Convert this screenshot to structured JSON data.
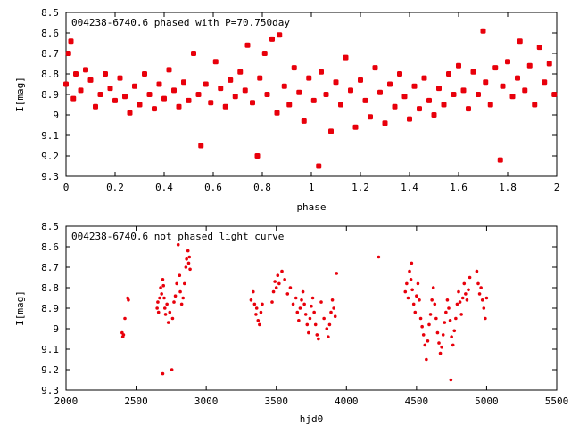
{
  "colors": {
    "points": "#e8000b",
    "axes": "#000000",
    "background": "#ffffff"
  },
  "chart_data": [
    {
      "type": "scatter",
      "title": "004238-6740.6 phased with P=70.750day",
      "xlabel": "phase",
      "ylabel": "I[mag]",
      "xlim": [
        0,
        2
      ],
      "ylim": [
        8.5,
        9.3
      ],
      "y_inverted": true,
      "grid": false,
      "x_ticks": [
        {
          "value": 0,
          "label": "0"
        },
        {
          "value": 0.2,
          "label": "0.2"
        },
        {
          "value": 0.4,
          "label": "0.4"
        },
        {
          "value": 0.6,
          "label": "0.6"
        },
        {
          "value": 0.8,
          "label": "0.8"
        },
        {
          "value": 1,
          "label": "1"
        },
        {
          "value": 1.2,
          "label": "1.2"
        },
        {
          "value": 1.4,
          "label": "1.4"
        },
        {
          "value": 1.6,
          "label": "1.6"
        },
        {
          "value": 1.8,
          "label": "1.8"
        },
        {
          "value": 2,
          "label": "2"
        }
      ],
      "y_ticks": [
        {
          "value": 8.5,
          "label": "8.5"
        },
        {
          "value": 8.6,
          "label": "8.6"
        },
        {
          "value": 8.7,
          "label": "8.7"
        },
        {
          "value": 8.8,
          "label": "8.8"
        },
        {
          "value": 8.9,
          "label": "8.9"
        },
        {
          "value": 9.0,
          "label": "9"
        },
        {
          "value": 9.1,
          "label": "9.1"
        },
        {
          "value": 9.2,
          "label": "9.2"
        },
        {
          "value": 9.3,
          "label": "9.3"
        }
      ],
      "marker": "star",
      "points": [
        [
          0.0,
          8.85
        ],
        [
          0.01,
          8.7
        ],
        [
          0.02,
          8.64
        ],
        [
          0.03,
          8.92
        ],
        [
          0.04,
          8.8
        ],
        [
          0.06,
          8.88
        ],
        [
          0.08,
          8.78
        ],
        [
          0.1,
          8.83
        ],
        [
          0.12,
          8.96
        ],
        [
          0.14,
          8.9
        ],
        [
          0.16,
          8.8
        ],
        [
          0.18,
          8.87
        ],
        [
          0.2,
          8.93
        ],
        [
          0.22,
          8.82
        ],
        [
          0.24,
          8.91
        ],
        [
          0.26,
          8.99
        ],
        [
          0.28,
          8.86
        ],
        [
          0.3,
          8.95
        ],
        [
          0.32,
          8.8
        ],
        [
          0.34,
          8.9
        ],
        [
          0.36,
          8.97
        ],
        [
          0.38,
          8.85
        ],
        [
          0.4,
          8.92
        ],
        [
          0.42,
          8.78
        ],
        [
          0.44,
          8.88
        ],
        [
          0.46,
          8.96
        ],
        [
          0.48,
          8.84
        ],
        [
          0.5,
          8.93
        ],
        [
          0.52,
          8.7
        ],
        [
          0.54,
          8.9
        ],
        [
          0.55,
          9.15
        ],
        [
          0.57,
          8.85
        ],
        [
          0.59,
          8.94
        ],
        [
          0.61,
          8.74
        ],
        [
          0.63,
          8.87
        ],
        [
          0.65,
          8.96
        ],
        [
          0.67,
          8.83
        ],
        [
          0.69,
          8.91
        ],
        [
          0.71,
          8.79
        ],
        [
          0.73,
          8.88
        ],
        [
          0.74,
          8.66
        ],
        [
          0.76,
          8.94
        ],
        [
          0.78,
          9.2
        ],
        [
          0.79,
          8.82
        ],
        [
          0.81,
          8.7
        ],
        [
          0.82,
          8.9
        ],
        [
          0.84,
          8.63
        ],
        [
          0.86,
          8.99
        ],
        [
          0.87,
          8.61
        ],
        [
          0.89,
          8.86
        ],
        [
          0.91,
          8.95
        ],
        [
          0.93,
          8.77
        ],
        [
          0.95,
          8.89
        ],
        [
          0.97,
          9.03
        ],
        [
          0.99,
          8.82
        ],
        [
          1.01,
          8.93
        ],
        [
          1.03,
          9.25
        ],
        [
          1.04,
          8.79
        ],
        [
          1.06,
          8.9
        ],
        [
          1.08,
          9.08
        ],
        [
          1.1,
          8.84
        ],
        [
          1.12,
          8.95
        ],
        [
          1.14,
          8.72
        ],
        [
          1.16,
          8.88
        ],
        [
          1.18,
          9.06
        ],
        [
          1.2,
          8.83
        ],
        [
          1.22,
          8.93
        ],
        [
          1.24,
          9.01
        ],
        [
          1.26,
          8.77
        ],
        [
          1.28,
          8.89
        ],
        [
          1.3,
          9.04
        ],
        [
          1.32,
          8.85
        ],
        [
          1.34,
          8.96
        ],
        [
          1.36,
          8.8
        ],
        [
          1.38,
          8.91
        ],
        [
          1.4,
          9.02
        ],
        [
          1.42,
          8.86
        ],
        [
          1.44,
          8.97
        ],
        [
          1.46,
          8.82
        ],
        [
          1.48,
          8.93
        ],
        [
          1.5,
          9.0
        ],
        [
          1.52,
          8.87
        ],
        [
          1.54,
          8.95
        ],
        [
          1.56,
          8.8
        ],
        [
          1.58,
          8.9
        ],
        [
          1.6,
          8.76
        ],
        [
          1.62,
          8.88
        ],
        [
          1.64,
          8.97
        ],
        [
          1.66,
          8.79
        ],
        [
          1.68,
          8.9
        ],
        [
          1.7,
          8.59
        ],
        [
          1.71,
          8.84
        ],
        [
          1.73,
          8.95
        ],
        [
          1.75,
          8.77
        ],
        [
          1.77,
          9.22
        ],
        [
          1.78,
          8.86
        ],
        [
          1.8,
          8.74
        ],
        [
          1.82,
          8.91
        ],
        [
          1.84,
          8.82
        ],
        [
          1.85,
          8.64
        ],
        [
          1.87,
          8.88
        ],
        [
          1.89,
          8.76
        ],
        [
          1.91,
          8.95
        ],
        [
          1.93,
          8.67
        ],
        [
          1.95,
          8.84
        ],
        [
          1.97,
          8.75
        ],
        [
          1.99,
          8.9
        ]
      ]
    },
    {
      "type": "scatter",
      "title": "004238-6740.6 not phased light curve",
      "xlabel": "hjd0",
      "ylabel": "I[mag]",
      "xlim": [
        2000,
        5500
      ],
      "ylim": [
        8.5,
        9.3
      ],
      "y_inverted": true,
      "grid": false,
      "x_ticks": [
        {
          "value": 2000,
          "label": "2000"
        },
        {
          "value": 2500,
          "label": "2500"
        },
        {
          "value": 3000,
          "label": "3000"
        },
        {
          "value": 3500,
          "label": "3500"
        },
        {
          "value": 4000,
          "label": "4000"
        },
        {
          "value": 4500,
          "label": "4500"
        },
        {
          "value": 5000,
          "label": "5000"
        },
        {
          "value": 5500,
          "label": "5500"
        }
      ],
      "y_ticks": [
        {
          "value": 8.5,
          "label": "8.5"
        },
        {
          "value": 8.6,
          "label": "8.6"
        },
        {
          "value": 8.7,
          "label": "8.7"
        },
        {
          "value": 8.8,
          "label": "8.8"
        },
        {
          "value": 8.9,
          "label": "8.9"
        },
        {
          "value": 9.0,
          "label": "9"
        },
        {
          "value": 9.1,
          "label": "9.1"
        },
        {
          "value": 9.2,
          "label": "9.2"
        },
        {
          "value": 9.3,
          "label": "9.3"
        }
      ],
      "marker": "dot",
      "points": [
        [
          2400,
          9.02
        ],
        [
          2405,
          9.04
        ],
        [
          2410,
          9.03
        ],
        [
          2420,
          8.95
        ],
        [
          2440,
          8.85
        ],
        [
          2445,
          8.86
        ],
        [
          2650,
          8.9
        ],
        [
          2655,
          8.87
        ],
        [
          2660,
          8.92
        ],
        [
          2668,
          8.85
        ],
        [
          2675,
          8.8
        ],
        [
          2682,
          8.83
        ],
        [
          2690,
          8.76
        ],
        [
          2695,
          8.79
        ],
        [
          2700,
          8.85
        ],
        [
          2705,
          8.9
        ],
        [
          2710,
          8.93
        ],
        [
          2690,
          9.22
        ],
        [
          2720,
          8.88
        ],
        [
          2730,
          8.97
        ],
        [
          2740,
          8.92
        ],
        [
          2755,
          9.2
        ],
        [
          2760,
          8.95
        ],
        [
          2770,
          8.87
        ],
        [
          2780,
          8.84
        ],
        [
          2790,
          8.78
        ],
        [
          2800,
          8.59
        ],
        [
          2810,
          8.74
        ],
        [
          2815,
          8.82
        ],
        [
          2825,
          8.88
        ],
        [
          2835,
          8.85
        ],
        [
          2845,
          8.78
        ],
        [
          2855,
          8.7
        ],
        [
          2860,
          8.66
        ],
        [
          2870,
          8.62
        ],
        [
          2875,
          8.68
        ],
        [
          2880,
          8.65
        ],
        [
          2885,
          8.71
        ],
        [
          3320,
          8.86
        ],
        [
          3335,
          8.82
        ],
        [
          3345,
          8.88
        ],
        [
          3355,
          8.93
        ],
        [
          3360,
          8.9
        ],
        [
          3370,
          8.96
        ],
        [
          3380,
          8.98
        ],
        [
          3390,
          8.92
        ],
        [
          3400,
          8.88
        ],
        [
          3470,
          8.87
        ],
        [
          3480,
          8.82
        ],
        [
          3490,
          8.77
        ],
        [
          3500,
          8.8
        ],
        [
          3510,
          8.74
        ],
        [
          3520,
          8.78
        ],
        [
          3540,
          8.72
        ],
        [
          3560,
          8.76
        ],
        [
          3580,
          8.83
        ],
        [
          3600,
          8.8
        ],
        [
          3620,
          8.88
        ],
        [
          3640,
          8.85
        ],
        [
          3650,
          8.92
        ],
        [
          3660,
          8.96
        ],
        [
          3670,
          8.9
        ],
        [
          3680,
          8.86
        ],
        [
          3690,
          8.82
        ],
        [
          3700,
          8.88
        ],
        [
          3710,
          8.93
        ],
        [
          3720,
          8.98
        ],
        [
          3730,
          9.02
        ],
        [
          3740,
          8.95
        ],
        [
          3750,
          8.89
        ],
        [
          3760,
          8.85
        ],
        [
          3770,
          8.92
        ],
        [
          3780,
          8.98
        ],
        [
          3790,
          9.03
        ],
        [
          3800,
          9.05
        ],
        [
          3820,
          8.87
        ],
        [
          3840,
          8.95
        ],
        [
          3860,
          9.0
        ],
        [
          3870,
          9.04
        ],
        [
          3880,
          8.98
        ],
        [
          3890,
          8.92
        ],
        [
          3900,
          8.86
        ],
        [
          3910,
          8.9
        ],
        [
          3920,
          8.94
        ],
        [
          3930,
          8.73
        ],
        [
          4230,
          8.65
        ],
        [
          4420,
          8.82
        ],
        [
          4430,
          8.78
        ],
        [
          4440,
          8.85
        ],
        [
          4450,
          8.72
        ],
        [
          4460,
          8.76
        ],
        [
          4465,
          8.68
        ],
        [
          4470,
          8.81
        ],
        [
          4480,
          8.88
        ],
        [
          4490,
          8.92
        ],
        [
          4500,
          8.84
        ],
        [
          4510,
          8.78
        ],
        [
          4520,
          8.86
        ],
        [
          4530,
          8.95
        ],
        [
          4540,
          8.99
        ],
        [
          4550,
          9.03
        ],
        [
          4560,
          9.08
        ],
        [
          4570,
          9.15
        ],
        [
          4580,
          9.06
        ],
        [
          4590,
          8.98
        ],
        [
          4600,
          8.93
        ],
        [
          4610,
          8.86
        ],
        [
          4620,
          8.8
        ],
        [
          4630,
          8.88
        ],
        [
          4640,
          8.95
        ],
        [
          4650,
          9.02
        ],
        [
          4660,
          9.07
        ],
        [
          4670,
          9.12
        ],
        [
          4680,
          9.09
        ],
        [
          4690,
          9.03
        ],
        [
          4700,
          8.97
        ],
        [
          4710,
          8.92
        ],
        [
          4720,
          8.86
        ],
        [
          4730,
          8.9
        ],
        [
          4740,
          8.96
        ],
        [
          4745,
          9.25
        ],
        [
          4750,
          9.04
        ],
        [
          4760,
          9.08
        ],
        [
          4770,
          9.01
        ],
        [
          4780,
          8.95
        ],
        [
          4790,
          8.88
        ],
        [
          4800,
          8.82
        ],
        [
          4810,
          8.87
        ],
        [
          4820,
          8.93
        ],
        [
          4830,
          8.85
        ],
        [
          4840,
          8.78
        ],
        [
          4850,
          8.83
        ],
        [
          4860,
          8.86
        ],
        [
          4870,
          8.81
        ],
        [
          4880,
          8.75
        ],
        [
          4930,
          8.72
        ],
        [
          4940,
          8.78
        ],
        [
          4950,
          8.83
        ],
        [
          4960,
          8.8
        ],
        [
          4970,
          8.86
        ],
        [
          4980,
          8.9
        ],
        [
          4990,
          8.95
        ],
        [
          5000,
          8.85
        ]
      ]
    }
  ]
}
